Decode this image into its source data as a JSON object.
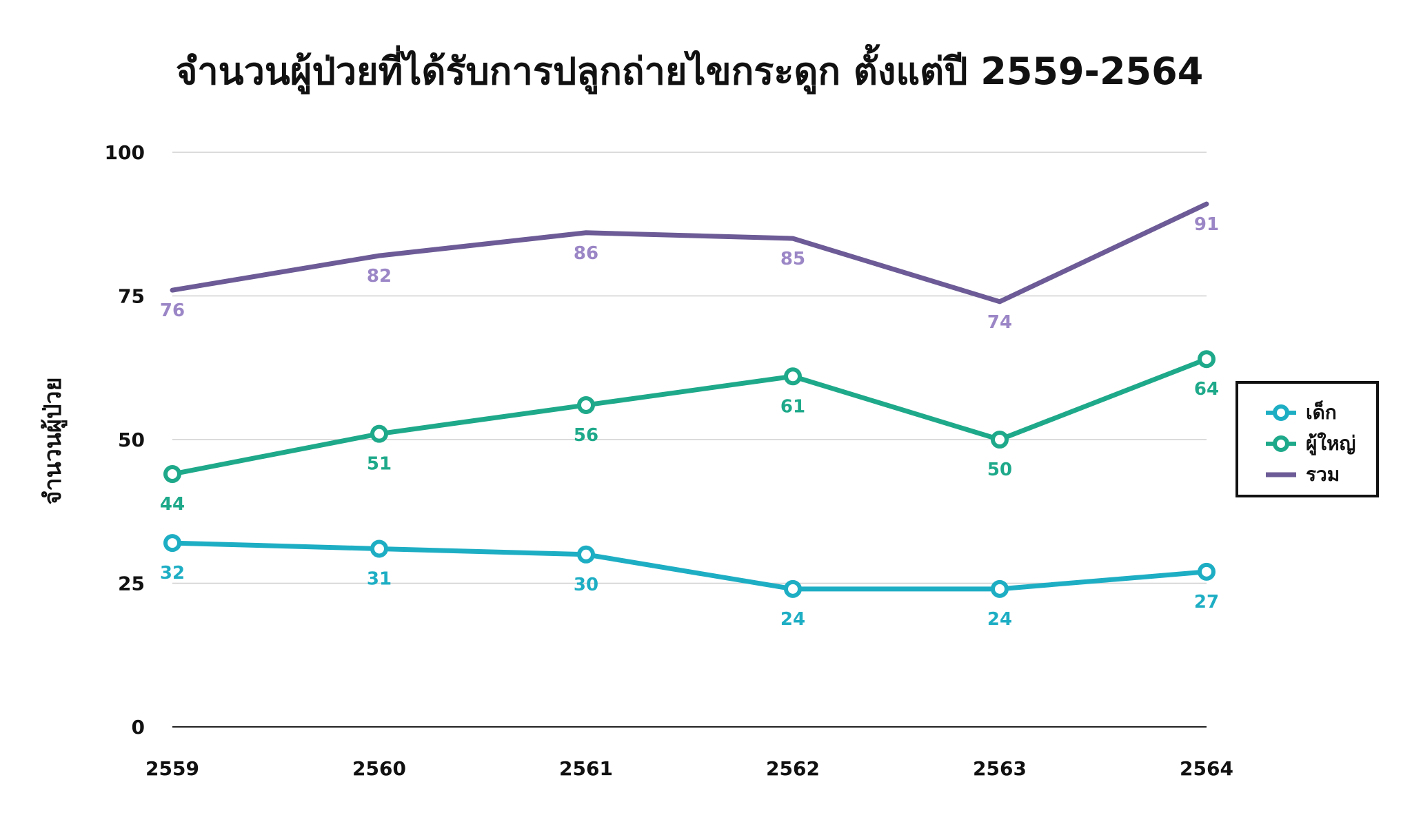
{
  "chart_data": {
    "type": "line",
    "title": "จำนวนผู้ป่วยที่ได้รับการปลูกถ่ายไขกระดูก ตั้งแต่ปี 2559-2564",
    "xlabel": "",
    "ylabel": "จำนวนผู้ป่วย",
    "categories": [
      "2559",
      "2560",
      "2561",
      "2562",
      "2563",
      "2564"
    ],
    "ylim": [
      0,
      100
    ],
    "yticks": [
      0,
      25,
      50,
      75,
      100
    ],
    "grid": true,
    "legend_position": "right",
    "series": [
      {
        "name": "เด็ก",
        "color": "#1eaec4",
        "markers": true,
        "label_position": "below",
        "values": [
          32,
          31,
          30,
          24,
          24,
          27
        ]
      },
      {
        "name": "ผู้ใหญ่",
        "color": "#1ea98a",
        "markers": true,
        "label_position": "below",
        "values": [
          44,
          51,
          56,
          61,
          50,
          64
        ]
      },
      {
        "name": "รวม",
        "color": "#6c5b96",
        "markers": false,
        "label_position": "below",
        "label_color": "#9b86c6",
        "values": [
          76,
          82,
          86,
          85,
          74,
          91
        ]
      }
    ]
  }
}
